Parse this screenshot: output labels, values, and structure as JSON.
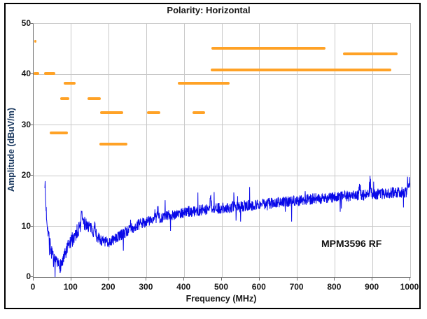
{
  "figure": {
    "border_color": "#000000",
    "background": "#ffffff"
  },
  "chart_data": {
    "type": "line",
    "title": "Polarity: Horizontal",
    "xlabel": "Frequency (MHz)",
    "ylabel": "Amplitude (dBuV/m)",
    "annotation": "MPM3596 RF",
    "xlim": [
      0,
      1000
    ],
    "ylim": [
      0,
      50
    ],
    "xticks": [
      0,
      100,
      200,
      300,
      400,
      500,
      600,
      700,
      800,
      900,
      1000
    ],
    "yticks": [
      0,
      10,
      20,
      30,
      40,
      50
    ],
    "grid": true,
    "legend": "none",
    "colors": {
      "trace": "#0808e8",
      "limits": "#ffa226",
      "grid": "#c9c9c9",
      "axis": "#6e6e6e",
      "ylabel_text": "#17365d",
      "text": "#1a1a1a"
    },
    "series": [
      {
        "name": "radiated-emissions-trace",
        "type": "noisy_line",
        "unit": "dBuV/m",
        "freq_range_mhz": [
          30,
          1000
        ],
        "keypoints": [
          [
            30,
            19
          ],
          [
            31,
            16.5
          ],
          [
            32,
            15
          ],
          [
            34,
            12.5
          ],
          [
            36,
            10.8
          ],
          [
            40,
            8.3
          ],
          [
            44,
            6.2
          ],
          [
            48,
            4.8
          ],
          [
            52,
            3.6
          ],
          [
            56,
            2.9
          ],
          [
            60,
            2.5
          ],
          [
            65,
            2.2
          ],
          [
            70,
            2.3
          ],
          [
            75,
            2.7
          ],
          [
            80,
            3.4
          ],
          [
            85,
            4.6
          ],
          [
            90,
            5.6
          ],
          [
            95,
            6.4
          ],
          [
            100,
            7.1
          ],
          [
            110,
            8.3
          ],
          [
            118,
            9.3
          ],
          [
            126,
            10.2
          ],
          [
            134,
            10.6
          ],
          [
            142,
            10.4
          ],
          [
            150,
            9.8
          ],
          [
            158,
            9.0
          ],
          [
            166,
            8.2
          ],
          [
            175,
            7.5
          ],
          [
            185,
            7.0
          ],
          [
            195,
            6.9
          ],
          [
            205,
            7.1
          ],
          [
            215,
            7.5
          ],
          [
            230,
            8.2
          ],
          [
            245,
            8.9
          ],
          [
            260,
            9.6
          ],
          [
            280,
            10.3
          ],
          [
            300,
            11.0
          ],
          [
            325,
            11.5
          ],
          [
            350,
            12.0
          ],
          [
            375,
            12.4
          ],
          [
            400,
            12.8
          ],
          [
            430,
            13.1
          ],
          [
            460,
            13.3
          ],
          [
            500,
            13.6
          ],
          [
            540,
            13.9
          ],
          [
            580,
            14.2
          ],
          [
            620,
            14.5
          ],
          [
            660,
            14.8
          ],
          [
            700,
            15.1
          ],
          [
            740,
            15.4
          ],
          [
            780,
            15.7
          ],
          [
            820,
            15.9
          ],
          [
            860,
            16.1
          ],
          [
            900,
            16.3
          ],
          [
            950,
            16.6
          ],
          [
            1000,
            16.9
          ]
        ],
        "noise": {
          "seed": 7,
          "base_db": 1.1,
          "low_freq_db": 1.5,
          "low_freq_cutoff_mhz": 150,
          "spike_prob": 0.03,
          "spike_db": 2.2
        },
        "spikes": [
          [
            128,
            2.2
          ],
          [
            163,
            1.8
          ],
          [
            330,
            1.4
          ],
          [
            470,
            2.0
          ],
          [
            866,
            1.6
          ],
          [
            893,
            3.6
          ],
          [
            997,
            2.0
          ]
        ]
      },
      {
        "name": "limit-marker-segments",
        "type": "h_segments",
        "unit": "dBuV/m",
        "segments": [
          [
            2,
            7,
            46.5
          ],
          [
            0,
            15,
            40.2
          ],
          [
            28,
            58,
            40.2
          ],
          [
            80,
            112,
            38.3
          ],
          [
            383,
            520,
            38.3
          ],
          [
            71,
            95,
            35.2
          ],
          [
            144,
            179,
            35.2
          ],
          [
            177,
            238,
            32.4
          ],
          [
            301,
            337,
            32.4
          ],
          [
            422,
            456,
            32.4
          ],
          [
            43,
            92,
            28.4
          ],
          [
            175,
            250,
            26.2
          ],
          [
            473,
            776,
            45.2
          ],
          [
            822,
            966,
            44.1
          ],
          [
            470,
            950,
            40.9
          ]
        ]
      }
    ]
  }
}
